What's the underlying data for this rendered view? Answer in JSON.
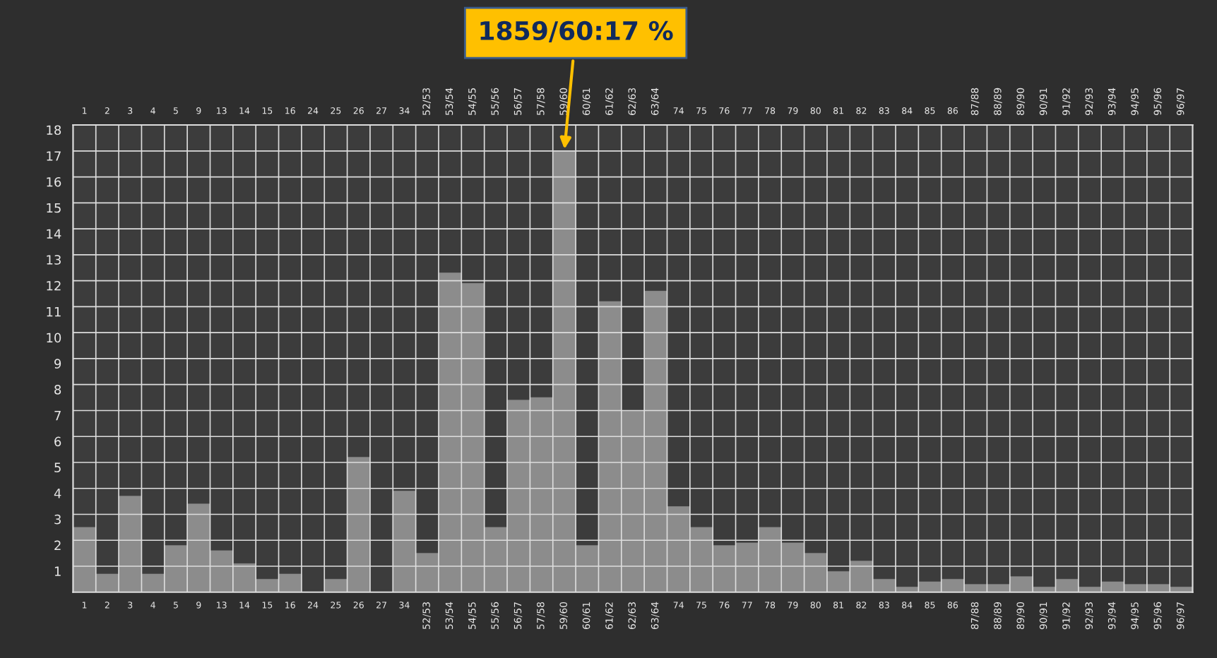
{
  "chart_data": {
    "type": "bar",
    "categories": [
      "1",
      "2",
      "3",
      "4",
      "5",
      "9",
      "13",
      "14",
      "15",
      "16",
      "24",
      "25",
      "26",
      "27",
      "34",
      "52/53",
      "53/54",
      "54/55",
      "55/56",
      "56/57",
      "57/58",
      "59/60",
      "60/61",
      "61/62",
      "62/63",
      "63/64",
      "74",
      "75",
      "76",
      "77",
      "78",
      "79",
      "80",
      "81",
      "82",
      "83",
      "84",
      "85",
      "86",
      "87/88",
      "88/89",
      "89/90",
      "90/91",
      "91/92",
      "92/93",
      "93/94",
      "94/95",
      "95/96",
      "96/97"
    ],
    "values": [
      2.5,
      0.7,
      3.7,
      0.7,
      1.8,
      3.4,
      1.6,
      1.1,
      0.5,
      0.7,
      0,
      0.5,
      5.2,
      0,
      3.9,
      1.5,
      12.3,
      11.9,
      2.5,
      7.4,
      7.5,
      17,
      1.8,
      11.2,
      7.0,
      11.6,
      3.3,
      2.5,
      1.8,
      1.9,
      2.5,
      1.9,
      1.5,
      0.8,
      1.2,
      0.5,
      0.2,
      0.4,
      0.5,
      0.3,
      0.3,
      0.6,
      0.2,
      0.5,
      0.2,
      0.4,
      0.3,
      0.3,
      0.2
    ],
    "color": "#8c8c8c",
    "ylim": [
      0,
      18
    ],
    "yticks": [
      1,
      2,
      3,
      4,
      5,
      6,
      7,
      8,
      9,
      10,
      11,
      12,
      13,
      14,
      15,
      16,
      17,
      18
    ],
    "grid": true,
    "annotations": [
      {
        "text": "1859/60:17 %",
        "x": "59/60",
        "y": 17
      }
    ]
  }
}
